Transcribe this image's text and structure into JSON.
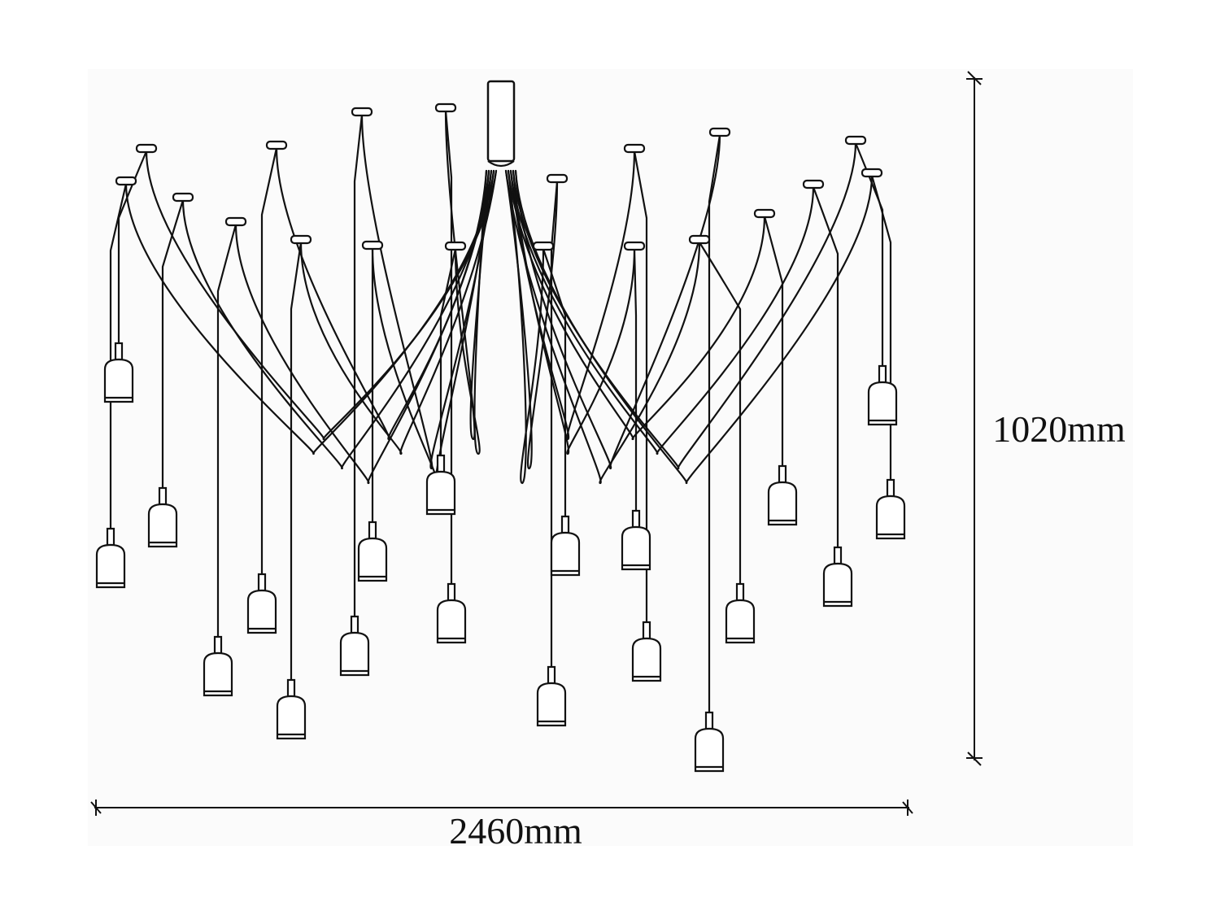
{
  "dimensions": {
    "width_label": "2460mm",
    "height_label": "1020mm"
  },
  "colors": {
    "line": "#111111",
    "background": "#ffffff"
  },
  "icons": [
    "ceiling-canopy-icon",
    "bulb-socket-icon",
    "dimension-arrow-icon"
  ]
}
